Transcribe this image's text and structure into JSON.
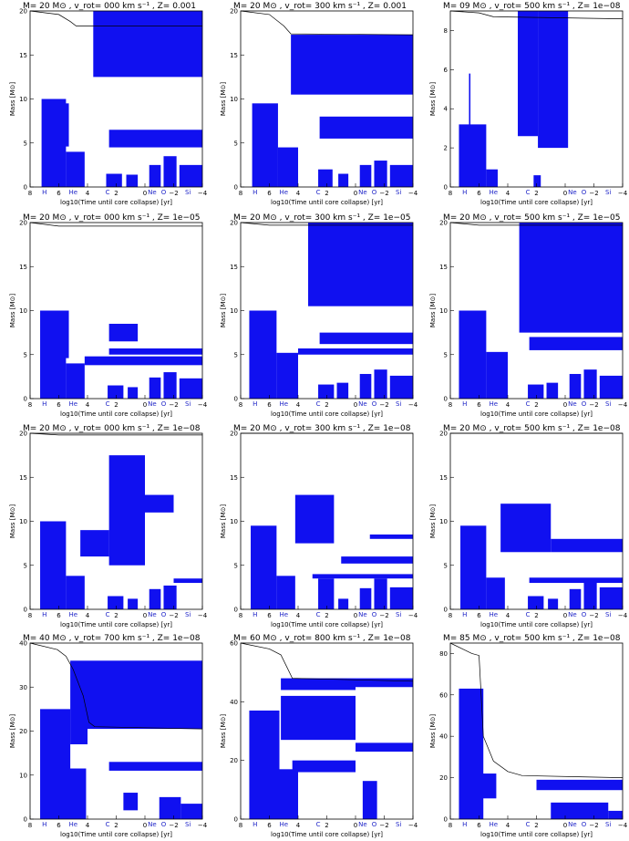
{
  "figure": {
    "colors": {
      "convective": "#1010f0",
      "burning_label": "#1f25c8",
      "axis": "#000000"
    },
    "panels": [
      {
        "title": "M= 20 M⊙ , v_rot= 000 km s⁻¹ , Z= 0.001",
        "ylabel": "Mass [M⊙]",
        "xlabel": "log10(Time until core collapse) [yr]",
        "ylim": [
          0,
          20
        ],
        "yticks": [
          "0",
          "5",
          "10",
          "15",
          "20"
        ],
        "xticks": [
          "8",
          "6",
          "4",
          "2",
          "0",
          "−2",
          "−4"
        ]
      },
      {
        "title": "M= 20 M⊙ , v_rot= 300 km s⁻¹ , Z= 0.001",
        "ylabel": "Mass [M⊙]",
        "xlabel": "log10(Time until core collapse) [yr]",
        "ylim": [
          0,
          20
        ],
        "yticks": [
          "0",
          "5",
          "10",
          "15",
          "20"
        ],
        "xticks": [
          "8",
          "6",
          "4",
          "2",
          "0",
          "−2",
          "−4"
        ]
      },
      {
        "title": "M= 09 M⊙ , v_rot= 500 km s⁻¹ , Z= 1e−08",
        "ylabel": "Mass [M⊙]",
        "xlabel": "log10(Time until core collapse) [yr]",
        "ylim": [
          0,
          9
        ],
        "yticks": [
          "0",
          "2",
          "4",
          "6",
          "8"
        ],
        "xticks": [
          "8",
          "6",
          "4",
          "2",
          "0",
          "−2",
          "−4"
        ]
      },
      {
        "title": "M= 20 M⊙ , v_rot= 000 km s⁻¹ , Z= 1e−05",
        "ylabel": "Mass [M⊙]",
        "xlabel": "log10(Time until core collapse) [yr]",
        "ylim": [
          0,
          20
        ],
        "yticks": [
          "0",
          "5",
          "10",
          "15",
          "20"
        ],
        "xticks": [
          "8",
          "6",
          "4",
          "2",
          "0",
          "−2",
          "−4"
        ]
      },
      {
        "title": "M= 20 M⊙ , v_rot= 300 km s⁻¹ , Z= 1e−05",
        "ylabel": "Mass [M⊙]",
        "xlabel": "log10(Time until core collapse) [yr]",
        "ylim": [
          0,
          20
        ],
        "yticks": [
          "0",
          "5",
          "10",
          "15",
          "20"
        ],
        "xticks": [
          "8",
          "6",
          "4",
          "2",
          "0",
          "−2",
          "−4"
        ]
      },
      {
        "title": "M= 20 M⊙ , v_rot= 500 km s⁻¹ , Z= 1e−05",
        "ylabel": "Mass [M⊙]",
        "xlabel": "log10(Time until core collapse) [yr]",
        "ylim": [
          0,
          20
        ],
        "yticks": [
          "0",
          "5",
          "10",
          "15",
          "20"
        ],
        "xticks": [
          "8",
          "6",
          "4",
          "2",
          "0",
          "−2",
          "−4"
        ]
      },
      {
        "title": "M= 20 M⊙ , v_rot= 000 km s⁻¹ , Z= 1e−08",
        "ylabel": "Mass [M⊙]",
        "xlabel": "log10(Time until core collapse) [yr]",
        "ylim": [
          0,
          20
        ],
        "yticks": [
          "0",
          "5",
          "10",
          "15",
          "20"
        ],
        "xticks": [
          "8",
          "6",
          "4",
          "2",
          "0",
          "−2",
          "−4"
        ]
      },
      {
        "title": "M= 20 M⊙ , v_rot= 300 km s⁻¹ , Z= 1e−08",
        "ylabel": "Mass [M⊙]",
        "xlabel": "log10(Time until core collapse) [yr]",
        "ylim": [
          0,
          20
        ],
        "yticks": [
          "0",
          "5",
          "10",
          "15",
          "20"
        ],
        "xticks": [
          "8",
          "6",
          "4",
          "2",
          "0",
          "−2",
          "−4"
        ]
      },
      {
        "title": "M= 20 M⊙ , v_rot= 500 km s⁻¹ , Z= 1e−08",
        "ylabel": "Mass [M⊙]",
        "xlabel": "log10(Time until core collapse) [yr]",
        "ylim": [
          0,
          20
        ],
        "yticks": [
          "0",
          "5",
          "10",
          "15",
          "20"
        ],
        "xticks": [
          "8",
          "6",
          "4",
          "2",
          "0",
          "−2",
          "−4"
        ]
      },
      {
        "title": "M= 40 M⊙ , v_rot= 700 km s⁻¹ , Z= 1e−08",
        "ylabel": "Mass [M⊙]",
        "xlabel": "log10(Time until core collapse) [yr]",
        "ylim": [
          0,
          40
        ],
        "yticks": [
          "0",
          "10",
          "20",
          "30",
          "40"
        ],
        "xticks": [
          "8",
          "6",
          "4",
          "2",
          "0",
          "−2",
          "−4"
        ]
      },
      {
        "title": "M= 60 M⊙ , v_rot= 800 km s⁻¹ , Z= 1e−08",
        "ylabel": "Mass [M⊙]",
        "xlabel": "log10(Time until core collapse) [yr]",
        "ylim": [
          0,
          60
        ],
        "yticks": [
          "0",
          "20",
          "40",
          "60"
        ],
        "xticks": [
          "8",
          "6",
          "4",
          "2",
          "0",
          "−2",
          "−4"
        ]
      },
      {
        "title": "M= 85 M⊙ , v_rot= 500 km s⁻¹ , Z= 1e−08",
        "ylabel": "Mass [M⊙]",
        "xlabel": "log10(Time until core collapse) [yr]",
        "ylim": [
          0,
          85
        ],
        "yticks": [
          "0",
          "20",
          "40",
          "60",
          "80"
        ],
        "xticks": [
          "8",
          "6",
          "4",
          "2",
          "0",
          "−2",
          "−4"
        ]
      }
    ]
  },
  "chart_data": {
    "type": "area",
    "xlim": [
      8,
      -4
    ],
    "burning_stage_labels": [
      "H",
      "He",
      "C",
      "Ne",
      "O",
      "Si"
    ],
    "burning_stage_positions": [
      7.0,
      5.0,
      2.6,
      -0.5,
      -1.3,
      -3.0
    ],
    "panels": [
      {
        "mass_line": [
          [
            8,
            20
          ],
          [
            6,
            19.6
          ],
          [
            5.2,
            18.8
          ],
          [
            4.8,
            18.3
          ],
          [
            -4,
            18.3
          ]
        ],
        "regions": [
          [
            3.6,
            -4,
            12.5,
            20
          ],
          [
            2.5,
            -4,
            4.5,
            6.5
          ],
          [
            6.6,
            5.3,
            4.6,
            9.5
          ],
          [
            7.2,
            5.5,
            0,
            10
          ],
          [
            5.5,
            4.2,
            0,
            4
          ],
          [
            2.7,
            1.6,
            0,
            1.5
          ],
          [
            1.3,
            0.5,
            0,
            1.4
          ],
          [
            -0.3,
            -1.1,
            0,
            2.5
          ],
          [
            -1.3,
            -2.2,
            0,
            3.5
          ],
          [
            -2.4,
            -4,
            0,
            2.5
          ]
        ]
      },
      {
        "mass_line": [
          [
            8,
            20
          ],
          [
            6,
            19.6
          ],
          [
            5.0,
            18.3
          ],
          [
            4.5,
            17.4
          ],
          [
            -4,
            17.3
          ]
        ],
        "regions": [
          [
            4.5,
            -4,
            10.5,
            17.3
          ],
          [
            2.5,
            -4,
            5.5,
            8
          ],
          [
            7.2,
            5.4,
            0,
            9.5
          ],
          [
            5.4,
            4.0,
            0,
            4.5
          ],
          [
            2.6,
            1.6,
            0,
            2
          ],
          [
            1.2,
            0.5,
            0,
            1.5
          ],
          [
            -0.3,
            -1.1,
            0,
            2.5
          ],
          [
            -1.3,
            -2.2,
            0,
            3
          ],
          [
            -2.4,
            -4,
            0,
            2.5
          ]
        ]
      },
      {
        "mass_line": [
          [
            8,
            9
          ],
          [
            6,
            8.9
          ],
          [
            5,
            8.7
          ],
          [
            -4,
            8.6
          ]
        ],
        "regions": [
          [
            3.3,
            1.9,
            2.6,
            9
          ],
          [
            1.9,
            -0.2,
            2.0,
            9
          ],
          [
            7.4,
            5.5,
            0,
            3.2
          ],
          [
            5.5,
            4.7,
            0,
            0.9
          ],
          [
            6.7,
            6.6,
            0,
            5.8
          ],
          [
            2.2,
            1.7,
            0,
            0.6
          ]
        ]
      },
      {
        "mass_line": [
          [
            8,
            20
          ],
          [
            6,
            19.6
          ],
          [
            -4,
            19.6
          ]
        ],
        "regions": [
          [
            2.5,
            0.5,
            6.5,
            8.5
          ],
          [
            2.5,
            -4,
            5,
            5.7
          ],
          [
            4.2,
            -4,
            3.8,
            4.8
          ],
          [
            6.6,
            5.3,
            4.6,
            10
          ],
          [
            7.3,
            5.5,
            0,
            10
          ],
          [
            5.5,
            4.2,
            0,
            4
          ],
          [
            2.6,
            1.5,
            0,
            1.5
          ],
          [
            1.2,
            0.5,
            0,
            1.3
          ],
          [
            -0.3,
            -1.1,
            0,
            2.4
          ],
          [
            -1.3,
            -2.2,
            0,
            3
          ],
          [
            -2.4,
            -4,
            0,
            2.3
          ]
        ]
      },
      {
        "mass_line": [
          [
            8,
            20
          ],
          [
            6,
            19.7
          ],
          [
            -4,
            19.7
          ]
        ],
        "regions": [
          [
            3.3,
            -4,
            10.5,
            20
          ],
          [
            2.5,
            -4,
            6.2,
            7.5
          ],
          [
            4,
            -4,
            5,
            5.7
          ],
          [
            7.4,
            5.5,
            0,
            10
          ],
          [
            5.5,
            4.0,
            0,
            5.2
          ],
          [
            2.6,
            1.5,
            0,
            1.6
          ],
          [
            1.3,
            0.5,
            0,
            1.8
          ],
          [
            -0.3,
            -1.1,
            0,
            2.8
          ],
          [
            -1.3,
            -2.2,
            0,
            3.3
          ],
          [
            -2.4,
            -4,
            0,
            2.6
          ]
        ]
      },
      {
        "mass_line": [
          [
            8,
            20
          ],
          [
            6,
            19.7
          ],
          [
            -4,
            19.7
          ]
        ],
        "regions": [
          [
            3.2,
            -4,
            7.5,
            20
          ],
          [
            2.5,
            -4,
            5.5,
            7
          ],
          [
            7.4,
            5.5,
            0,
            10
          ],
          [
            5.5,
            4.0,
            0,
            5.3
          ],
          [
            2.6,
            1.5,
            0,
            1.6
          ],
          [
            1.3,
            0.5,
            0,
            1.8
          ],
          [
            -0.3,
            -1.1,
            0,
            2.8
          ],
          [
            -1.3,
            -2.2,
            0,
            3.3
          ],
          [
            -2.4,
            -4,
            0,
            2.6
          ]
        ]
      },
      {
        "mass_line": [
          [
            8,
            20
          ],
          [
            6,
            19.8
          ],
          [
            -4,
            19.8
          ]
        ],
        "regions": [
          [
            2.5,
            0.0,
            5,
            17.5
          ],
          [
            4.5,
            2.5,
            6,
            9
          ],
          [
            0,
            -2,
            11,
            13
          ],
          [
            -2,
            -4,
            3,
            3.5
          ],
          [
            7.3,
            5.5,
            0,
            10
          ],
          [
            5.5,
            4.2,
            0,
            3.8
          ],
          [
            2.6,
            1.5,
            0,
            1.5
          ],
          [
            1.2,
            0.5,
            0,
            1.2
          ],
          [
            -0.3,
            -1.1,
            0,
            2.3
          ],
          [
            -1.3,
            -2.2,
            0,
            2.7
          ]
        ]
      },
      {
        "mass_line": [
          [
            8,
            20
          ],
          [
            -4,
            20
          ]
        ],
        "regions": [
          [
            4.2,
            1.5,
            7.5,
            13
          ],
          [
            1.0,
            -4,
            5.2,
            6
          ],
          [
            3.0,
            -4,
            3.5,
            4
          ],
          [
            -1,
            -4,
            8,
            8.5
          ],
          [
            7.3,
            5.5,
            0,
            9.5
          ],
          [
            5.5,
            4.2,
            0,
            3.8
          ],
          [
            2.6,
            1.5,
            0,
            3.5
          ],
          [
            1.2,
            0.5,
            0,
            1.2
          ],
          [
            -0.3,
            -1.1,
            0,
            2.4
          ],
          [
            -1.3,
            -2.2,
            0,
            3.5
          ],
          [
            -2.4,
            -4,
            0,
            2.5
          ]
        ]
      },
      {
        "mass_line": [
          [
            8,
            20
          ],
          [
            -4,
            20
          ]
        ],
        "regions": [
          [
            4.5,
            1.0,
            6.5,
            12
          ],
          [
            1.0,
            -4,
            6.5,
            8
          ],
          [
            2.5,
            -4,
            3,
            3.6
          ],
          [
            7.3,
            5.5,
            0,
            9.5
          ],
          [
            5.5,
            4.2,
            0,
            3.6
          ],
          [
            2.6,
            1.5,
            0,
            1.5
          ],
          [
            1.2,
            0.5,
            0,
            1.2
          ],
          [
            -0.3,
            -1.1,
            0,
            2.3
          ],
          [
            -1.3,
            -2.2,
            0,
            3.2
          ],
          [
            -2.4,
            -4,
            0,
            2.5
          ]
        ]
      },
      {
        "mass_line": [
          [
            8,
            40
          ],
          [
            6.1,
            38.5
          ],
          [
            5.5,
            37
          ],
          [
            5,
            34
          ],
          [
            4.3,
            28
          ],
          [
            3.9,
            22
          ],
          [
            3.5,
            21
          ],
          [
            -4,
            20.5
          ]
        ],
        "regions": [
          [
            4.0,
            -4,
            20.5,
            36
          ],
          [
            5.2,
            4.0,
            17,
            36
          ],
          [
            2.5,
            -4,
            11,
            13
          ],
          [
            7.3,
            5.2,
            0,
            25
          ],
          [
            5.4,
            4.1,
            0,
            11.5
          ],
          [
            1.5,
            0.5,
            2,
            6
          ],
          [
            -1.0,
            -2.5,
            0,
            5
          ],
          [
            -2.5,
            -4,
            0,
            3.5
          ]
        ]
      },
      {
        "mass_line": [
          [
            8,
            60
          ],
          [
            6,
            58
          ],
          [
            5.2,
            56
          ],
          [
            4.8,
            52
          ],
          [
            4.4,
            48
          ],
          [
            -4,
            47
          ]
        ],
        "regions": [
          [
            5.2,
            0,
            44,
            48
          ],
          [
            0,
            -4,
            45,
            48
          ],
          [
            5.2,
            0,
            27,
            42
          ],
          [
            4.4,
            0,
            16,
            20
          ],
          [
            0,
            -4,
            23,
            26
          ],
          [
            7.4,
            5.3,
            0,
            37
          ],
          [
            5.4,
            4.0,
            0,
            17
          ],
          [
            -0.5,
            -1.5,
            0,
            13
          ]
        ]
      },
      {
        "mass_line": [
          [
            8,
            85
          ],
          [
            6.5,
            80
          ],
          [
            6,
            79
          ],
          [
            5.7,
            40
          ],
          [
            5,
            28
          ],
          [
            4,
            23
          ],
          [
            3,
            21
          ],
          [
            -4,
            20
          ]
        ],
        "regions": [
          [
            7.4,
            5.7,
            0,
            63
          ],
          [
            5.8,
            4.8,
            10,
            22
          ],
          [
            2,
            -4,
            14,
            19
          ],
          [
            1,
            -3,
            0,
            8
          ],
          [
            -3,
            -4,
            0,
            4
          ]
        ]
      }
    ]
  }
}
